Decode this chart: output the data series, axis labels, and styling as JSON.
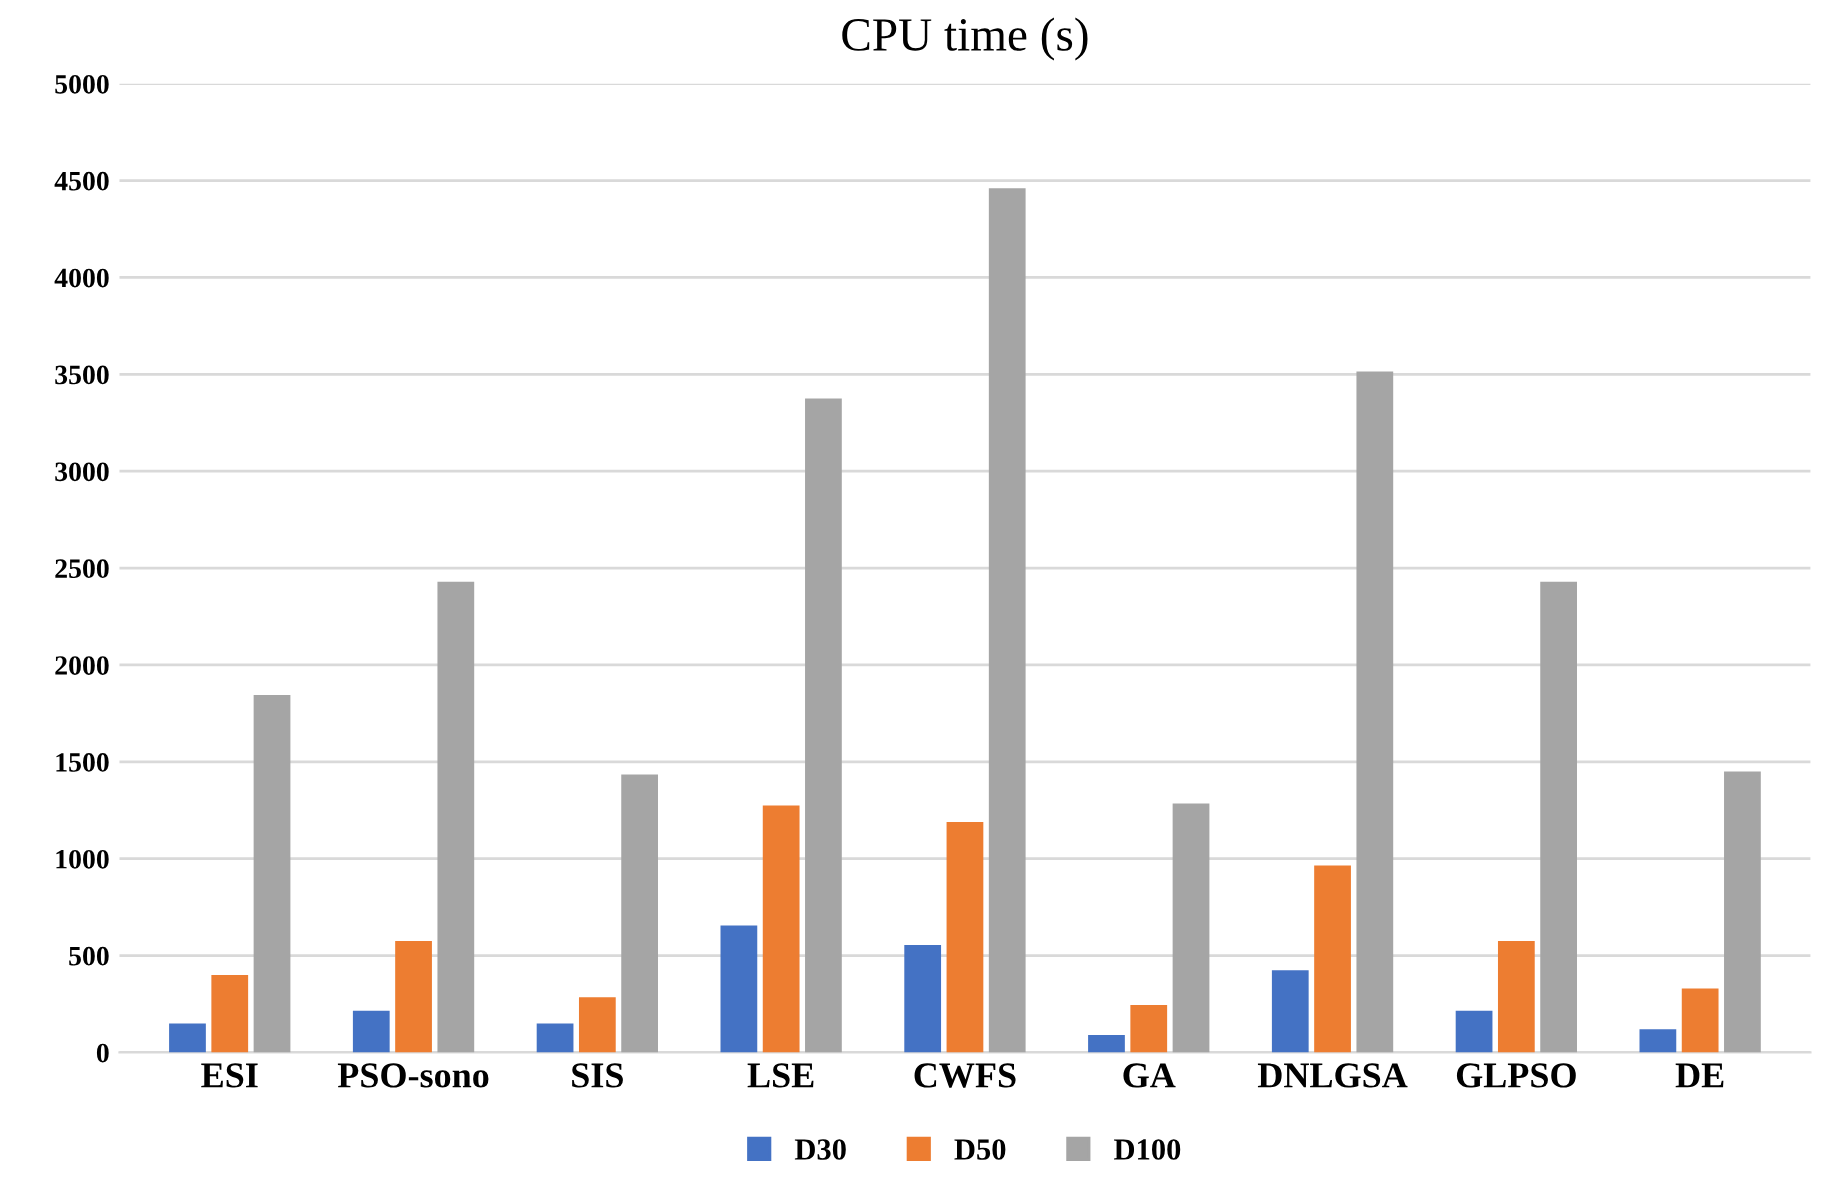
{
  "chart_data": {
    "type": "bar",
    "title": "CPU time (s)",
    "categories": [
      "ESI",
      "PSO-sono",
      "SIS",
      "LSE",
      "CWFS",
      "GA",
      "DNLGSA",
      "GLPSO",
      "DE"
    ],
    "series": [
      {
        "name": "D30",
        "color": "#4472c4",
        "values": [
          150,
          215,
          150,
          655,
          555,
          90,
          425,
          215,
          120
        ]
      },
      {
        "name": "D50",
        "color": "#ed7d31",
        "values": [
          400,
          575,
          285,
          1275,
          1190,
          245,
          965,
          575,
          330
        ]
      },
      {
        "name": "D100",
        "color": "#a5a5a5",
        "values": [
          1845,
          2430,
          1435,
          3375,
          4460,
          1285,
          3515,
          2430,
          1450
        ]
      }
    ],
    "ylim": [
      0,
      5000
    ],
    "yticks": [
      0,
      500,
      1000,
      1500,
      2000,
      2500,
      3000,
      3500,
      4000,
      4500,
      5000
    ],
    "grid": "y",
    "legend": "bottom"
  }
}
